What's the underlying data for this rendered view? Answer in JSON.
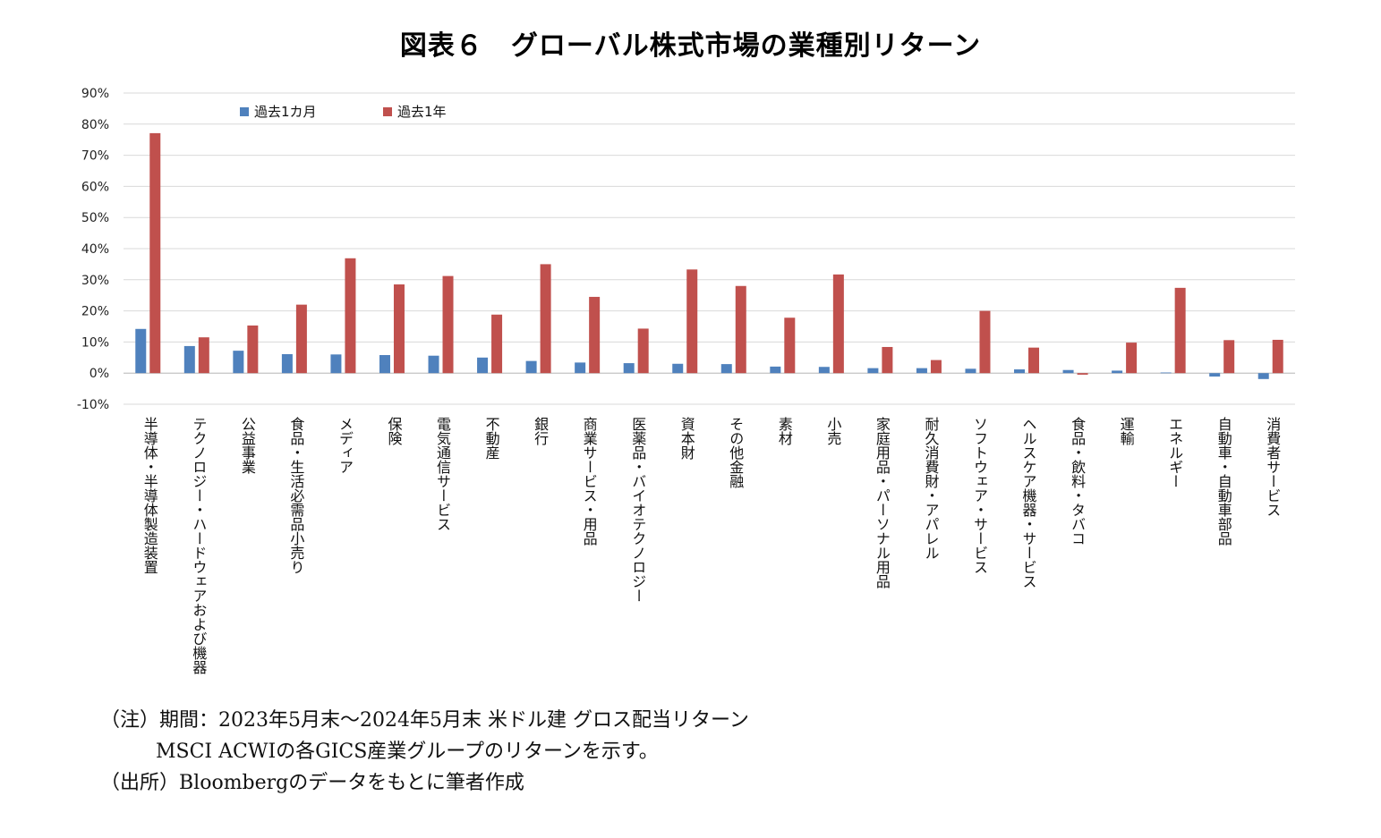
{
  "title": "図表６　グローバル株式市場の業種別リターン",
  "colors": {
    "series1": "#4f81bd",
    "series2": "#c0504d",
    "grid": "#d9d9d9"
  },
  "chart_data": {
    "type": "bar",
    "ylim": [
      -0.1,
      0.9
    ],
    "yticks": [
      {
        "value": 0.9,
        "label": "90%"
      },
      {
        "value": 0.8,
        "label": "80%"
      },
      {
        "value": 0.7,
        "label": "70%"
      },
      {
        "value": 0.6,
        "label": "60%"
      },
      {
        "value": 0.5,
        "label": "50%"
      },
      {
        "value": 0.4,
        "label": "40%"
      },
      {
        "value": 0.3,
        "label": "30%"
      },
      {
        "value": 0.2,
        "label": "20%"
      },
      {
        "value": 0.1,
        "label": "10%"
      },
      {
        "value": 0.0,
        "label": "0%"
      },
      {
        "value": -0.1,
        "label": "-10%"
      }
    ],
    "grid": true,
    "legend_position": "top-left",
    "categories": [
      "半導体・半導体製造装置",
      "テクノロジー・ハードウェアおよび機器",
      "公益事業",
      "食品・生活必需品小売り",
      "メディア",
      "保険",
      "電気通信サービス",
      "不動産",
      "銀行",
      "商業サービス・用品",
      "医薬品・バイオテクノロジー",
      "資本財",
      "その他金融",
      "素材",
      "小売",
      "家庭用品・パーソナル用品",
      "耐久消費財・アパレル",
      "ソフトウェア・サービス",
      "ヘルスケア機器・サービス",
      "食品・飲料・タバコ",
      "運輸",
      "エネルギー",
      "自動車・自動車部品",
      "消費者サービス"
    ],
    "series": [
      {
        "name": "過去1カ月",
        "values": [
          0.142,
          0.087,
          0.072,
          0.061,
          0.06,
          0.058,
          0.056,
          0.05,
          0.039,
          0.034,
          0.032,
          0.03,
          0.029,
          0.021,
          0.02,
          0.016,
          0.016,
          0.014,
          0.012,
          0.01,
          0.008,
          0.002,
          -0.011,
          -0.019
        ]
      },
      {
        "name": "過去1年",
        "values": [
          0.771,
          0.115,
          0.153,
          0.22,
          0.369,
          0.285,
          0.312,
          0.188,
          0.35,
          0.245,
          0.143,
          0.333,
          0.28,
          0.178,
          0.317,
          0.084,
          0.042,
          0.2,
          0.082,
          -0.005,
          0.098,
          0.274,
          0.106,
          0.107
        ]
      }
    ]
  },
  "notes": {
    "line1": "（注）期間：2023年5月末～2024年5月末 米ドル建 グロス配当リターン",
    "line2": "MSCI ACWIの各GICS産業グループのリターンを示す。",
    "line3": "（出所）Bloombergのデータをもとに筆者作成"
  }
}
